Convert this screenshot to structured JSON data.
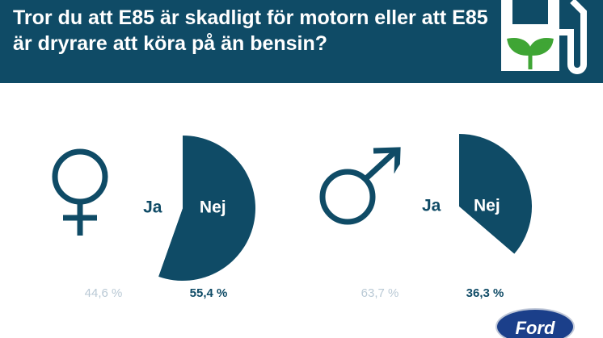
{
  "header": {
    "title": "Tror du att E85 är skadligt för motorn eller att E85 är dryrare att köra på än bensin?"
  },
  "brand": "Ford",
  "chart_data": [
    {
      "type": "pie",
      "categories": [
        "Ja",
        "Nej"
      ],
      "values": [
        44.6,
        55.4
      ],
      "value_labels": [
        "44,6 %",
        "55,4 %"
      ],
      "colors": [
        "#ffffff",
        "#0f4b66"
      ],
      "label_colors": [
        "#b9c9d5",
        "#0f4b66"
      ]
    },
    {
      "type": "pie",
      "categories": [
        "Ja",
        "Nej"
      ],
      "values": [
        63.7,
        36.3
      ],
      "value_labels": [
        "63,7 %",
        "36,3 %"
      ],
      "colors": [
        "#ffffff",
        "#0f4b66"
      ],
      "label_colors": [
        "#b9c9d5",
        "#0f4b66"
      ]
    }
  ]
}
